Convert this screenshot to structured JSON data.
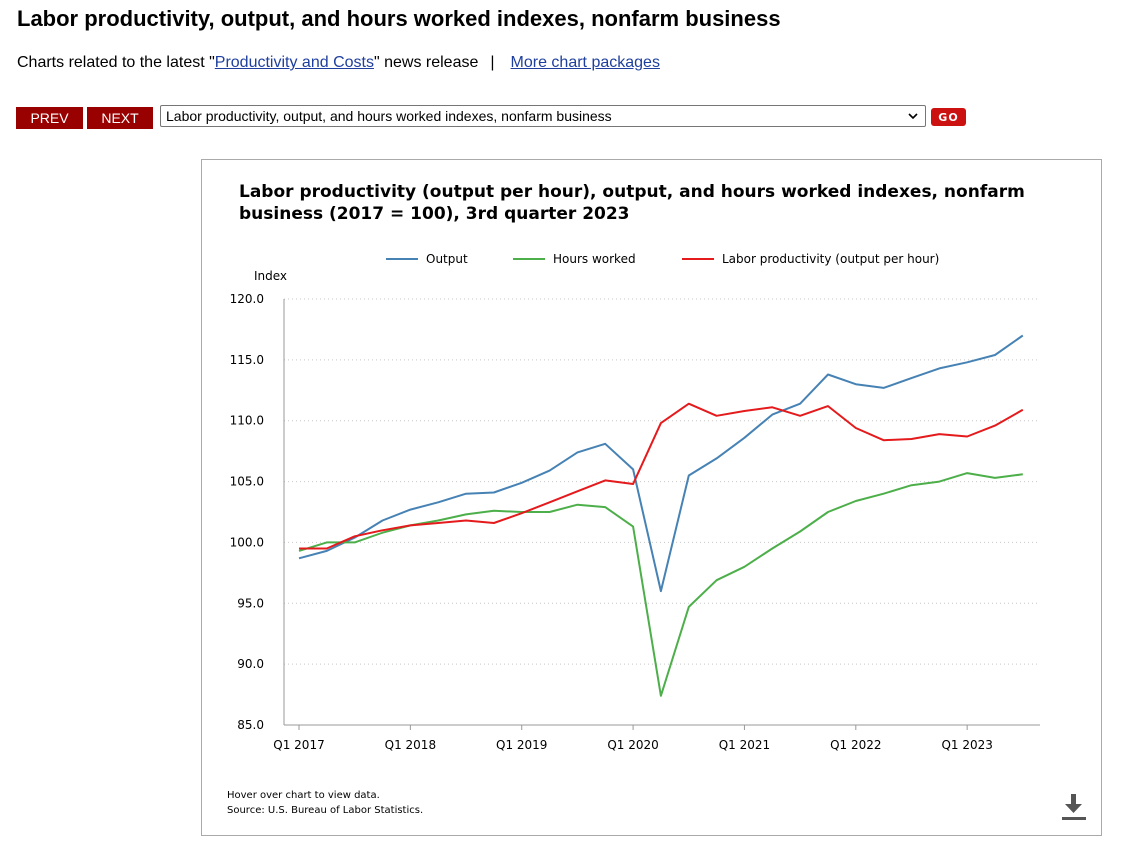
{
  "page": {
    "title": "Labor productivity, output, and hours worked indexes, nonfarm business",
    "intro_prefix": "Charts related to the latest \"",
    "intro_link": "Productivity and Costs",
    "intro_suffix": "\" news release",
    "separator": "|",
    "more_link": "More chart packages"
  },
  "nav": {
    "prev_label": "PREV",
    "next_label": "NEXT",
    "selected_chart": "Labor productivity, output, and hours worked indexes, nonfarm business",
    "go_label": "GO"
  },
  "chart_notes": {
    "hover": "Hover over chart to view data.",
    "source": "Source: U.S. Bureau of Labor Statistics."
  },
  "icons": {
    "download": "download-icon",
    "dropdown": "chevron-down-icon"
  },
  "colors": {
    "output": "#4682b4",
    "hours": "#4daf4a",
    "productivity": "#e41a1c",
    "nav_button": "#990000",
    "go_button": "#cc1111",
    "link": "#1f3f9e"
  },
  "chart_data": {
    "type": "line",
    "title": "Labor productivity (output per hour), output, and hours worked indexes, nonfarm business (2017 = 100), 3rd quarter 2023",
    "ylabel": "Index",
    "ylim": [
      85,
      120
    ],
    "yticks": [
      "120.0",
      "115.0",
      "110.0",
      "105.0",
      "100.0",
      "95.0",
      "90.0",
      "85.0"
    ],
    "xticks": [
      "Q1 2017",
      "Q1 2018",
      "Q1 2019",
      "Q1 2020",
      "Q1 2021",
      "Q1 2022",
      "Q1 2023"
    ],
    "grid": true,
    "legend_position": "top",
    "x": [
      "Q1 2017",
      "Q2 2017",
      "Q3 2017",
      "Q4 2017",
      "Q1 2018",
      "Q2 2018",
      "Q3 2018",
      "Q4 2018",
      "Q1 2019",
      "Q2 2019",
      "Q3 2019",
      "Q4 2019",
      "Q1 2020",
      "Q2 2020",
      "Q3 2020",
      "Q4 2020",
      "Q1 2021",
      "Q2 2021",
      "Q3 2021",
      "Q4 2021",
      "Q1 2022",
      "Q2 2022",
      "Q3 2022",
      "Q4 2022",
      "Q1 2023",
      "Q2 2023",
      "Q3 2023"
    ],
    "series": [
      {
        "name": "Output",
        "color": "#4682b4",
        "values": [
          98.7,
          99.3,
          100.4,
          101.8,
          102.7,
          103.3,
          104.0,
          104.1,
          104.9,
          105.9,
          107.4,
          108.1,
          106.0,
          96.0,
          105.5,
          106.9,
          108.6,
          110.5,
          111.4,
          113.8,
          113.0,
          112.7,
          113.5,
          114.3,
          114.8,
          115.4,
          117.0
        ]
      },
      {
        "name": "Hours worked",
        "color": "#4daf4a",
        "values": [
          99.3,
          100.0,
          100.0,
          100.8,
          101.4,
          101.8,
          102.3,
          102.6,
          102.5,
          102.5,
          103.1,
          102.9,
          101.3,
          87.4,
          94.7,
          96.9,
          98.0,
          99.5,
          100.9,
          102.5,
          103.4,
          104.0,
          104.7,
          105.0,
          105.7,
          105.3,
          105.6
        ]
      },
      {
        "name": "Labor productivity (output per hour)",
        "color": "#e41a1c",
        "values": [
          99.5,
          99.5,
          100.5,
          101.0,
          101.4,
          101.6,
          101.8,
          101.6,
          102.4,
          103.3,
          104.2,
          105.1,
          104.8,
          109.8,
          111.4,
          110.4,
          110.8,
          111.1,
          110.4,
          111.2,
          109.4,
          108.4,
          108.5,
          108.9,
          108.7,
          109.6,
          110.9
        ]
      }
    ]
  }
}
